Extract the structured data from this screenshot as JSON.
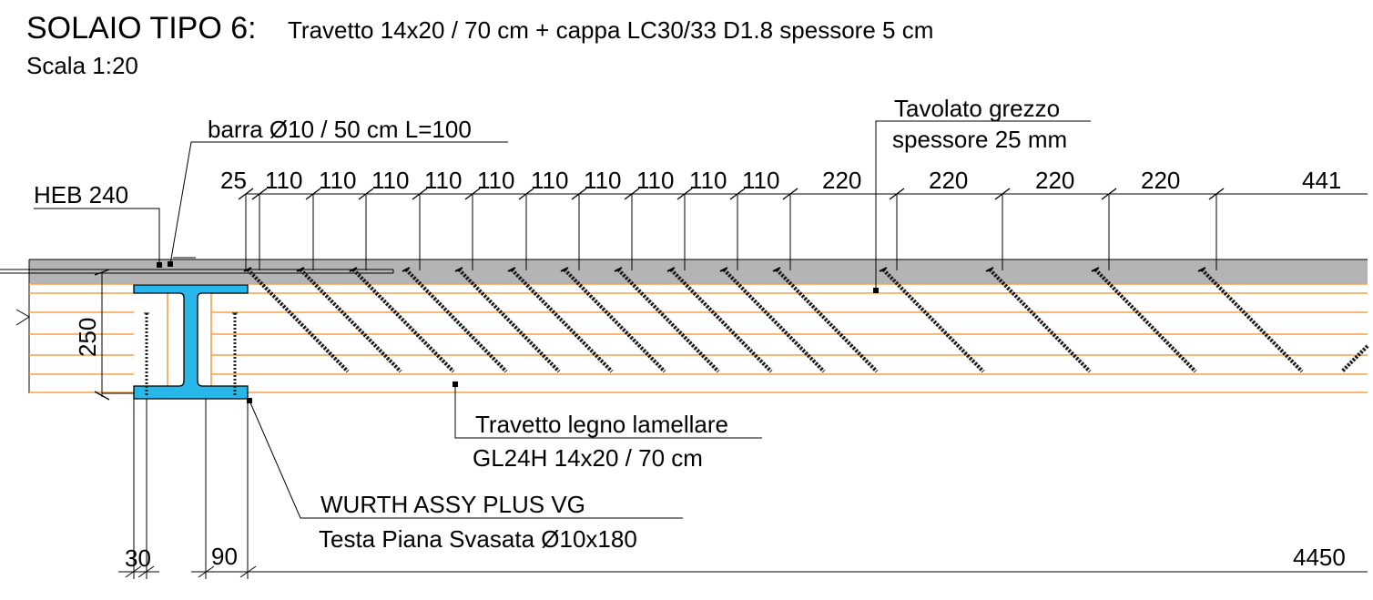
{
  "title": {
    "main": "SOLAIO TIPO 6:",
    "sub": "Travetto 14x20 / 70 cm + cappa LC30/33 D1.8 spessore 5 cm",
    "scale": "Scala 1:20"
  },
  "labels": {
    "heb": "HEB 240",
    "barra": "barra Ø10 / 50 cm L=100",
    "tavolato_1": "Tavolato grezzo",
    "tavolato_2": "spessore 25 mm",
    "travetto_1": "Travetto legno lamellare",
    "travetto_2": "GL24H 14x20 / 70 cm",
    "wurth_1": "WURTH ASSY PLUS VG",
    "wurth_2": "Testa Piana Svasata Ø10x180"
  },
  "dimensions": {
    "top": [
      "25",
      "110",
      "110",
      "110",
      "110",
      "110",
      "110",
      "110",
      "110",
      "110",
      "110",
      "220",
      "220",
      "220",
      "220",
      "441"
    ],
    "height": "250",
    "bottom_30": "30",
    "bottom_90": "90",
    "bottom_total": "4450"
  },
  "colors": {
    "slab": "#b4b4b4",
    "wood_lines": "#f5a04a",
    "steel": "#29b6e8",
    "line": "#000000"
  }
}
